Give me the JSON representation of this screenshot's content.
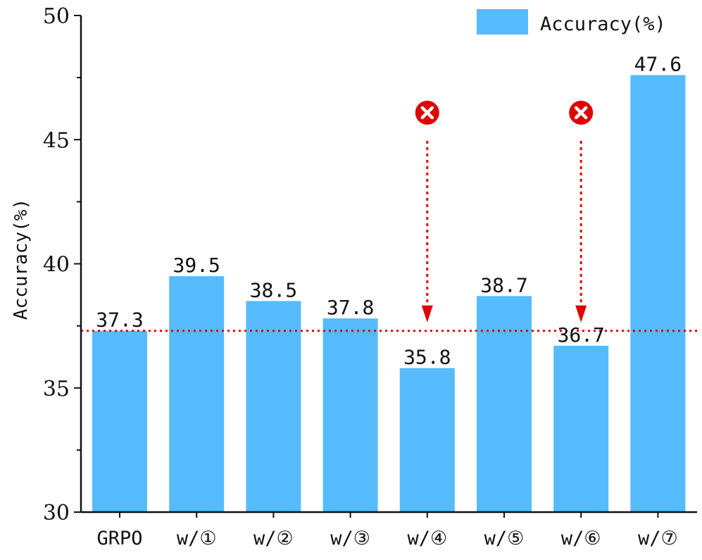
{
  "chart_data": {
    "type": "bar",
    "categories": [
      "GRPO",
      "w/①",
      "w/②",
      "w/③",
      "w/④",
      "w/⑤",
      "w/⑥",
      "w/⑦"
    ],
    "series": [
      {
        "name": "Accuracy(%)",
        "values": [
          37.3,
          39.5,
          38.5,
          37.8,
          35.8,
          38.7,
          36.7,
          47.6
        ]
      }
    ],
    "value_labels": [
      "37.3",
      "39.5",
      "38.5",
      "37.8",
      "35.8",
      "38.7",
      "36.7",
      "47.6"
    ],
    "ylabel": "Accuracy(%)",
    "xlabel": "",
    "ylim": [
      30,
      50
    ],
    "yticks": [
      30,
      35,
      40,
      45,
      50
    ],
    "ytick_labels": [
      "30",
      "35",
      "40",
      "45",
      "50"
    ],
    "reference_line": {
      "value": 37.3,
      "style": "dotted",
      "color": "#e00000"
    },
    "markers": [
      {
        "category": "w/④",
        "symbol": "cross-in-circle",
        "color": "#e00000"
      },
      {
        "category": "w/⑥",
        "symbol": "cross-in-circle",
        "color": "#e00000"
      }
    ],
    "legend": {
      "entries": [
        "Accuracy(%)"
      ],
      "placement": "top-right"
    },
    "grid": false,
    "colors": {
      "bar": "#55bbfc",
      "reference": "#e00000",
      "axis": "#111111"
    }
  }
}
